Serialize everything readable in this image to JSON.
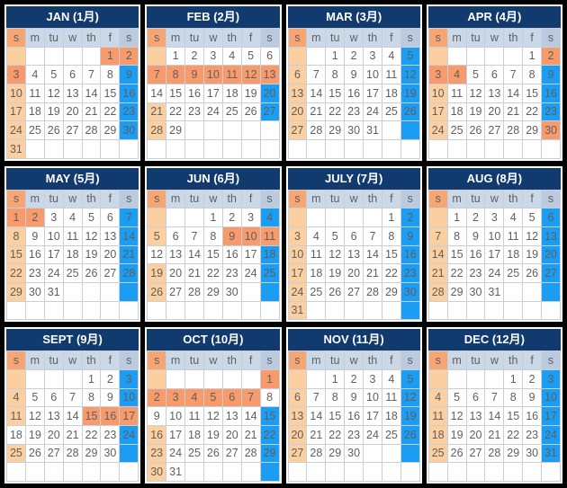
{
  "calendar": {
    "day_headers": [
      "s",
      "m",
      "tu",
      "w",
      "th",
      "f",
      "s"
    ],
    "colors": {
      "page_background": "#000000",
      "panel_background": "#FFFFFF",
      "month_header_background": "#113A6E",
      "month_header_text": "#FFFFFF",
      "weekday_header_background": "#CBD8E8",
      "sunday_header_background": "#F5A673",
      "saturday_header_background": "#BCCADF",
      "sunday_cell": "#FBCF9F",
      "holiday_cell": "#F89B6C",
      "saturday_cell": "#1B9DF3",
      "date_text": "#5F5F5F"
    },
    "cell_state_legend": {
      "n": "normal weekday (white)",
      "su": "sunday (peach)",
      "ho": "holiday (salmon)",
      "sa": "saturday (blue, white bold text)",
      "e": "empty white",
      "esu": "empty sunday (peach)",
      "esa": "empty saturday (blue)"
    },
    "months": [
      {
        "id": "jan",
        "title": "JAN (1月)",
        "rows": [
          [
            "|esu",
            "|e",
            "|e",
            "|e",
            "|e",
            "1|ho",
            "2|ho"
          ],
          [
            "3|ho",
            "4|n",
            "5|n",
            "6|n",
            "7|n",
            "8|n",
            "9|sa"
          ],
          [
            "10|su",
            "11|n",
            "12|n",
            "13|n",
            "14|n",
            "15|n",
            "16|sa"
          ],
          [
            "17|su",
            "18|n",
            "19|n",
            "20|n",
            "21|n",
            "22|n",
            "23|sa"
          ],
          [
            "24|su",
            "25|n",
            "26|n",
            "27|n",
            "28|n",
            "29|n",
            "30|sa"
          ],
          [
            "31|su",
            "|e",
            "|e",
            "|e",
            "|e",
            "|e",
            "|e"
          ]
        ]
      },
      {
        "id": "feb",
        "title": "FEB (2月)",
        "rows": [
          [
            "|esu",
            "1|n",
            "2|n",
            "3|n",
            "4|n",
            "5|n",
            "6|n"
          ],
          [
            "7|ho",
            "8|ho",
            "9|ho",
            "10|ho",
            "11|ho",
            "12|ho",
            "13|ho"
          ],
          [
            "14|n",
            "15|n",
            "16|n",
            "17|n",
            "18|n",
            "19|n",
            "20|sa"
          ],
          [
            "21|su",
            "22|n",
            "23|n",
            "24|n",
            "25|n",
            "26|n",
            "27|sa"
          ],
          [
            "28|su",
            "29|n",
            "|e",
            "|e",
            "|e",
            "|e",
            "|e"
          ],
          [
            "|e",
            "|e",
            "|e",
            "|e",
            "|e",
            "|e",
            "|e"
          ]
        ]
      },
      {
        "id": "mar",
        "title": "MAR (3月)",
        "rows": [
          [
            "|esu",
            "|e",
            "1|n",
            "2|n",
            "3|n",
            "4|n",
            "5|sa"
          ],
          [
            "6|su",
            "7|n",
            "8|n",
            "9|n",
            "10|n",
            "11|n",
            "12|sa"
          ],
          [
            "13|su",
            "14|n",
            "15|n",
            "16|n",
            "17|n",
            "18|n",
            "19|sa"
          ],
          [
            "20|su",
            "21|n",
            "22|n",
            "23|n",
            "24|n",
            "25|n",
            "26|sa"
          ],
          [
            "27|su",
            "28|n",
            "29|n",
            "30|n",
            "31|n",
            "|e",
            "|esa"
          ],
          [
            "|e",
            "|e",
            "|e",
            "|e",
            "|e",
            "|e",
            "|e"
          ]
        ]
      },
      {
        "id": "apr",
        "title": "APR (4月)",
        "rows": [
          [
            "|esu",
            "|e",
            "|e",
            "|e",
            "|e",
            "1|n",
            "2|ho"
          ],
          [
            "3|ho",
            "4|ho",
            "5|n",
            "6|n",
            "7|n",
            "8|n",
            "9|sa"
          ],
          [
            "10|su",
            "11|n",
            "12|n",
            "13|n",
            "14|n",
            "15|n",
            "16|sa"
          ],
          [
            "17|su",
            "18|n",
            "19|n",
            "20|n",
            "21|n",
            "22|n",
            "23|sa"
          ],
          [
            "24|su",
            "25|n",
            "26|n",
            "27|n",
            "28|n",
            "29|n",
            "30|ho"
          ],
          [
            "|e",
            "|e",
            "|e",
            "|e",
            "|e",
            "|e",
            "|e"
          ]
        ]
      },
      {
        "id": "may",
        "title": "MAY (5月)",
        "rows": [
          [
            "1|ho",
            "2|ho",
            "3|n",
            "4|n",
            "5|n",
            "6|n",
            "7|sa"
          ],
          [
            "8|su",
            "9|n",
            "10|n",
            "11|n",
            "12|n",
            "13|n",
            "14|sa"
          ],
          [
            "15|su",
            "16|n",
            "17|n",
            "18|n",
            "19|n",
            "20|n",
            "21|sa"
          ],
          [
            "22|su",
            "23|n",
            "24|n",
            "25|n",
            "26|n",
            "27|n",
            "28|sa"
          ],
          [
            "29|su",
            "30|n",
            "31|n",
            "|e",
            "|e",
            "|e",
            "|esa"
          ],
          [
            "|e",
            "|e",
            "|e",
            "|e",
            "|e",
            "|e",
            "|e"
          ]
        ]
      },
      {
        "id": "jun",
        "title": "JUN (6月)",
        "rows": [
          [
            "|esu",
            "|e",
            "|e",
            "1|n",
            "2|n",
            "3|n",
            "4|sa"
          ],
          [
            "5|su",
            "6|n",
            "7|n",
            "8|n",
            "9|ho",
            "10|ho",
            "11|ho"
          ],
          [
            "12|n",
            "13|n",
            "14|n",
            "15|n",
            "16|n",
            "17|n",
            "18|sa"
          ],
          [
            "19|su",
            "20|n",
            "21|n",
            "22|n",
            "23|n",
            "24|n",
            "25|sa"
          ],
          [
            "26|su",
            "27|n",
            "28|n",
            "29|n",
            "30|n",
            "|e",
            "|esa"
          ],
          [
            "|e",
            "|e",
            "|e",
            "|e",
            "|e",
            "|e",
            "|e"
          ]
        ]
      },
      {
        "id": "july",
        "title": "JULY (7月)",
        "rows": [
          [
            "|esu",
            "|e",
            "|e",
            "|e",
            "|e",
            "1|n",
            "2|sa"
          ],
          [
            "3|su",
            "4|n",
            "5|n",
            "6|n",
            "7|n",
            "8|n",
            "9|sa"
          ],
          [
            "10|su",
            "11|n",
            "12|n",
            "13|n",
            "14|n",
            "15|n",
            "16|sa"
          ],
          [
            "17|su",
            "18|n",
            "19|n",
            "20|n",
            "21|n",
            "22|n",
            "23|sa"
          ],
          [
            "24|su",
            "25|n",
            "26|n",
            "27|n",
            "28|n",
            "29|n",
            "30|sa"
          ],
          [
            "31|su",
            "|e",
            "|e",
            "|e",
            "|e",
            "|e",
            "|esa"
          ]
        ]
      },
      {
        "id": "aug",
        "title": "AUG (8月)",
        "rows": [
          [
            "|esu",
            "1|n",
            "2|n",
            "3|n",
            "4|n",
            "5|n",
            "6|sa"
          ],
          [
            "7|su",
            "8|n",
            "9|n",
            "10|n",
            "11|n",
            "12|n",
            "13|sa"
          ],
          [
            "14|su",
            "15|n",
            "16|n",
            "17|n",
            "18|n",
            "19|n",
            "20|sa"
          ],
          [
            "21|su",
            "22|n",
            "23|n",
            "24|n",
            "25|n",
            "26|n",
            "27|sa"
          ],
          [
            "28|su",
            "29|n",
            "30|n",
            "31|n",
            "|e",
            "|e",
            "|esa"
          ],
          [
            "|e",
            "|e",
            "|e",
            "|e",
            "|e",
            "|e",
            "|e"
          ]
        ]
      },
      {
        "id": "sept",
        "title": "SEPT (9月)",
        "rows": [
          [
            "|esu",
            "|e",
            "|e",
            "|e",
            "1|n",
            "2|n",
            "3|sa"
          ],
          [
            "4|su",
            "5|n",
            "6|n",
            "7|n",
            "8|n",
            "9|n",
            "10|sa"
          ],
          [
            "11|su",
            "12|n",
            "13|n",
            "14|n",
            "15|ho",
            "16|ho",
            "17|ho"
          ],
          [
            "18|n",
            "19|n",
            "20|n",
            "21|n",
            "22|n",
            "23|n",
            "24|sa"
          ],
          [
            "25|su",
            "26|n",
            "27|n",
            "28|n",
            "29|n",
            "30|n",
            "|esa"
          ],
          [
            "|e",
            "|e",
            "|e",
            "|e",
            "|e",
            "|e",
            "|e"
          ]
        ]
      },
      {
        "id": "oct",
        "title": "OCT (10月)",
        "rows": [
          [
            "|esu",
            "|e",
            "|e",
            "|e",
            "|e",
            "|e",
            "1|ho"
          ],
          [
            "2|ho",
            "3|ho",
            "4|ho",
            "5|ho",
            "6|ho",
            "7|ho",
            "8|n"
          ],
          [
            "9|n",
            "10|n",
            "11|n",
            "12|n",
            "13|n",
            "14|n",
            "15|sa"
          ],
          [
            "16|su",
            "17|n",
            "18|n",
            "19|n",
            "20|n",
            "21|n",
            "22|sa"
          ],
          [
            "23|su",
            "24|n",
            "25|n",
            "26|n",
            "27|n",
            "28|n",
            "29|sa"
          ],
          [
            "30|su",
            "31|n",
            "|e",
            "|e",
            "|e",
            "|e",
            "|esa"
          ]
        ]
      },
      {
        "id": "nov",
        "title": "NOV (11月)",
        "rows": [
          [
            "|esu",
            "|e",
            "1|n",
            "2|n",
            "3|n",
            "4|n",
            "5|sa"
          ],
          [
            "6|su",
            "7|n",
            "8|n",
            "9|n",
            "10|n",
            "11|n",
            "12|sa"
          ],
          [
            "13|su",
            "14|n",
            "15|n",
            "16|n",
            "17|n",
            "18|n",
            "19|sa"
          ],
          [
            "20|su",
            "21|n",
            "22|n",
            "23|n",
            "24|n",
            "25|n",
            "26|sa"
          ],
          [
            "27|su",
            "28|n",
            "29|n",
            "30|n",
            "|e",
            "|e",
            "|esa"
          ],
          [
            "|e",
            "|e",
            "|e",
            "|e",
            "|e",
            "|e",
            "|e"
          ]
        ]
      },
      {
        "id": "dec",
        "title": "DEC (12月)",
        "rows": [
          [
            "|esu",
            "|e",
            "|e",
            "|e",
            "1|n",
            "2|n",
            "3|sa"
          ],
          [
            "4|su",
            "5|n",
            "6|n",
            "7|n",
            "8|n",
            "9|n",
            "10|sa"
          ],
          [
            "11|su",
            "12|n",
            "13|n",
            "14|n",
            "15|n",
            "16|n",
            "17|sa"
          ],
          [
            "18|su",
            "19|n",
            "20|n",
            "21|n",
            "22|n",
            "23|n",
            "24|sa"
          ],
          [
            "25|su",
            "26|n",
            "27|n",
            "28|n",
            "29|n",
            "30|n",
            "31|sa"
          ],
          [
            "|e",
            "|e",
            "|e",
            "|e",
            "|e",
            "|e",
            "|e"
          ]
        ]
      }
    ]
  }
}
